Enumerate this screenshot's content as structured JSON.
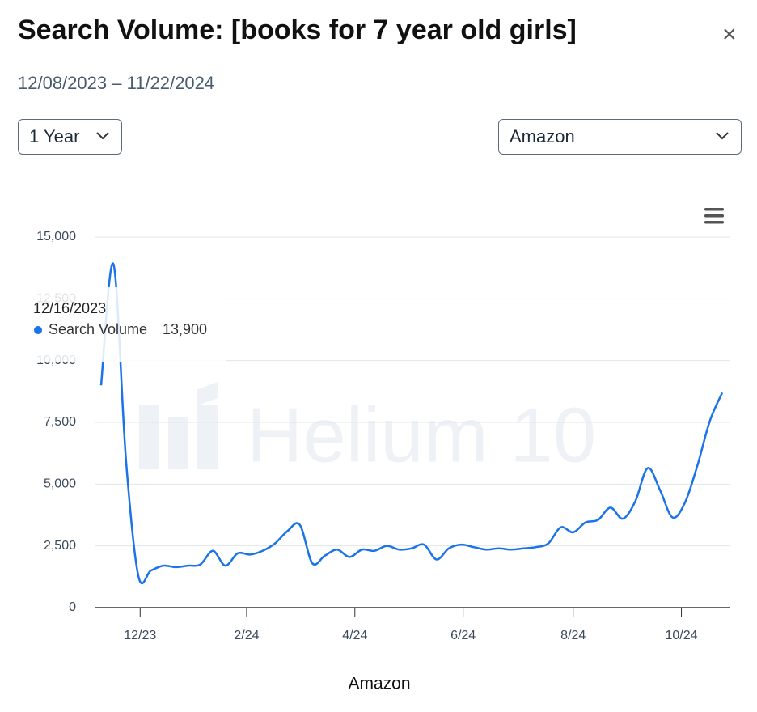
{
  "header": {
    "title": "Search Volume: [books for 7 year old girls]",
    "date_range": "12/08/2023 – 11/22/2024"
  },
  "controls": {
    "period": "1 Year",
    "marketplace": "Amazon"
  },
  "watermark": "Helium 10",
  "chart_data": {
    "type": "line",
    "xlabel": "Amazon",
    "x": [
      "2023-12-09",
      "2023-12-16",
      "2023-12-23",
      "2023-12-30",
      "2024-01-06",
      "2024-01-13",
      "2024-01-20",
      "2024-01-27",
      "2024-02-03",
      "2024-02-10",
      "2024-02-17",
      "2024-02-24",
      "2024-03-02",
      "2024-03-09",
      "2024-03-16",
      "2024-03-23",
      "2024-03-30",
      "2024-04-06",
      "2024-04-13",
      "2024-04-20",
      "2024-04-27",
      "2024-05-04",
      "2024-05-11",
      "2024-05-18",
      "2024-05-25",
      "2024-06-01",
      "2024-06-08",
      "2024-06-15",
      "2024-06-22",
      "2024-06-29",
      "2024-07-06",
      "2024-07-13",
      "2024-07-20",
      "2024-07-27",
      "2024-08-03",
      "2024-08-10",
      "2024-08-17",
      "2024-08-24",
      "2024-08-31",
      "2024-09-07",
      "2024-09-14",
      "2024-09-21",
      "2024-09-28",
      "2024-10-05",
      "2024-10-12",
      "2024-10-19",
      "2024-10-26",
      "2024-11-02",
      "2024-11-09",
      "2024-11-16",
      "2024-11-23"
    ],
    "series": [
      {
        "name": "Search Volume",
        "color": "#1a73e8",
        "values": [
          9000,
          13900,
          6000,
          1280,
          1500,
          1700,
          1640,
          1700,
          1750,
          2300,
          1700,
          2200,
          2150,
          2300,
          2600,
          3100,
          3350,
          1800,
          2100,
          2350,
          2050,
          2350,
          2300,
          2500,
          2350,
          2400,
          2550,
          1950,
          2400,
          2550,
          2450,
          2350,
          2400,
          2350,
          2400,
          2450,
          2600,
          3250,
          3050,
          3450,
          3550,
          4050,
          3600,
          4300,
          5650,
          4750,
          3650,
          4250,
          5750,
          7550,
          8700
        ]
      }
    ],
    "xlim": [
      "2023-12-09",
      "2024-11-23"
    ],
    "xticks": [
      {
        "value": "2023-12-31",
        "label": "12/23"
      },
      {
        "value": "2024-02-29",
        "label": "2/24"
      },
      {
        "value": "2024-04-30",
        "label": "4/24"
      },
      {
        "value": "2024-06-30",
        "label": "6/24"
      },
      {
        "value": "2024-08-31",
        "label": "8/24"
      },
      {
        "value": "2024-10-31",
        "label": "10/24"
      }
    ],
    "ylim": [
      0,
      15000
    ],
    "yticks": [
      0,
      {
        "value": 2500,
        "label": "2,500"
      },
      {
        "value": 5000,
        "label": "5,000"
      },
      {
        "value": 7500,
        "label": "7,500"
      },
      {
        "value": 10000,
        "label": "10,000"
      },
      {
        "value": 12500,
        "label": "12,500"
      },
      {
        "value": 15000,
        "label": "15,000"
      }
    ],
    "grid": true,
    "tooltip": {
      "date": "12/16/2023",
      "value": "13,900"
    }
  }
}
